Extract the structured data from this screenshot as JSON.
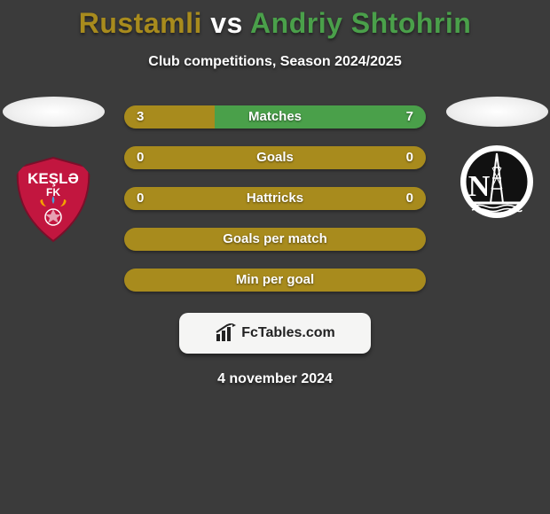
{
  "title": {
    "player1": "Rustamli",
    "vs": "vs",
    "player2": "Andriy Shtohrin",
    "player1_color": "#a88b1d",
    "vs_color": "#ffffff",
    "player2_color": "#4aa04a"
  },
  "subtitle": "Club competitions, Season 2024/2025",
  "colors": {
    "bar_left": "#a88b1d",
    "bar_right": "#4aa04a",
    "bar_full": "#a88b1d",
    "background": "#3b3b3b"
  },
  "stats": [
    {
      "label": "Matches",
      "left_val": "3",
      "right_val": "7",
      "left_pct": 30,
      "right_pct": 70
    },
    {
      "label": "Goals",
      "left_val": "0",
      "right_val": "0",
      "left_pct": 100,
      "right_pct": 0,
      "single": true
    },
    {
      "label": "Hattricks",
      "left_val": "0",
      "right_val": "0",
      "left_pct": 100,
      "right_pct": 0,
      "single": true
    },
    {
      "label": "Goals per match",
      "left_val": "",
      "right_val": "",
      "left_pct": 100,
      "right_pct": 0,
      "single": true
    },
    {
      "label": "Min per goal",
      "left_val": "",
      "right_val": "",
      "left_pct": 100,
      "right_pct": 0,
      "single": true
    }
  ],
  "branding": {
    "text": "FcTables.com"
  },
  "date": "4 november 2024",
  "left_club": {
    "name": "Keşlə FK",
    "badge_bg": "#c2163f",
    "badge_text": "KEŞLƏ",
    "badge_sub": "FK"
  },
  "right_club": {
    "name": "Neftçi",
    "badge_outer": "#ffffff",
    "badge_inner": "#111111"
  }
}
